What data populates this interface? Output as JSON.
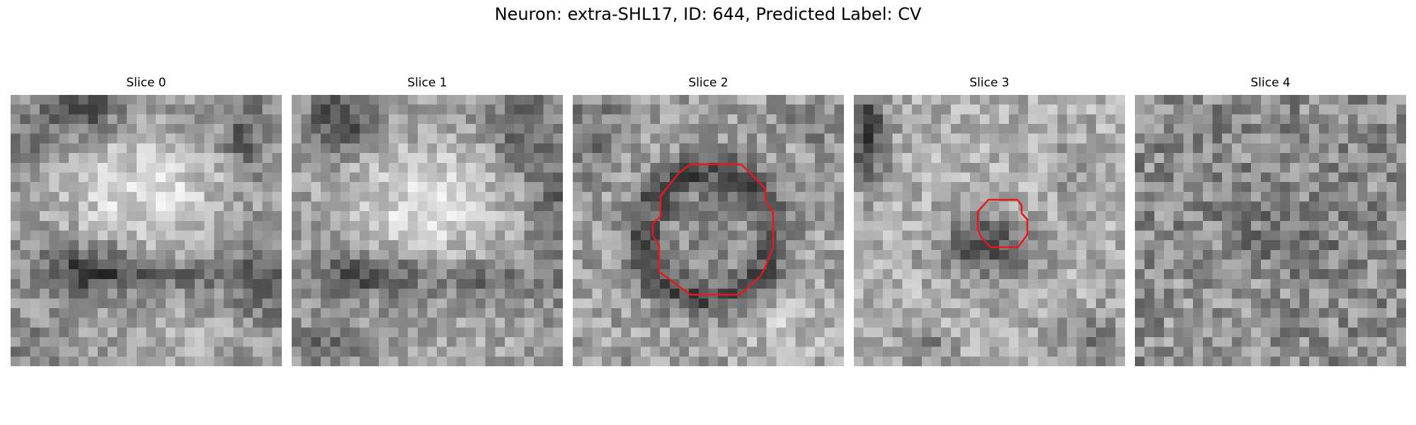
{
  "figure": {
    "title": "Neuron: extra-SHL17, ID: 644, Predicted Label: CV"
  },
  "panels": [
    {
      "title": "Slice 0",
      "has_contour": false
    },
    {
      "title": "Slice 1",
      "has_contour": false
    },
    {
      "title": "Slice 2",
      "has_contour": true
    },
    {
      "title": "Slice 3",
      "has_contour": true
    },
    {
      "title": "Slice 4",
      "has_contour": false
    }
  ],
  "contour_color": "#e41a1c",
  "colormap": "gray"
}
